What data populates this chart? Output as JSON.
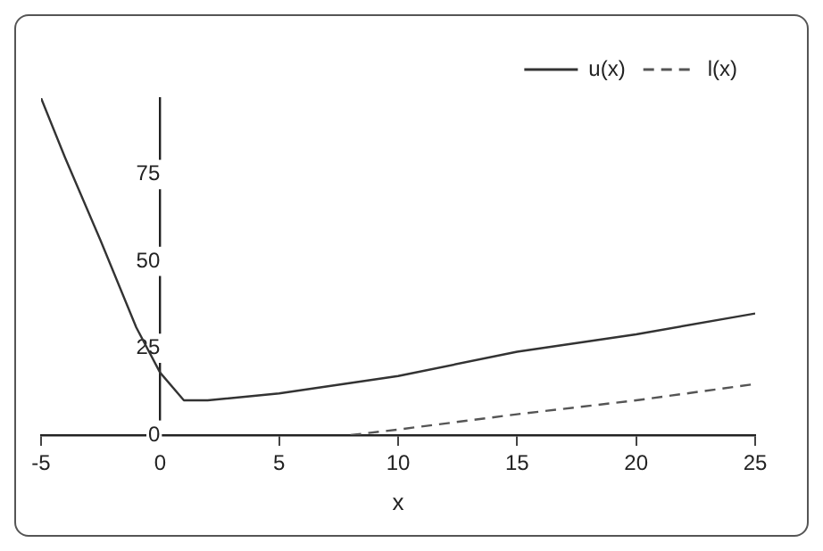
{
  "chart_data": {
    "type": "line",
    "xlabel": "x",
    "xlim": [
      -5,
      25
    ],
    "xticks": [
      -5,
      0,
      5,
      10,
      15,
      20,
      25
    ],
    "ylim": [
      0,
      97
    ],
    "yticks": [
      0,
      25,
      50,
      75
    ],
    "grid": false,
    "legend": "top right",
    "marker": "none",
    "series": [
      {
        "name": "u(x)",
        "color": "#333333",
        "line_style": "solid",
        "x": [
          -5,
          -4,
          -2.5,
          -1,
          0,
          1,
          2,
          5,
          10,
          15,
          20,
          25
        ],
        "values": [
          97,
          80,
          56,
          31,
          18,
          10,
          10,
          12,
          17,
          24,
          29,
          35
        ]
      },
      {
        "name": "l(x)",
        "color": "#555555",
        "line_style": "dashed",
        "x": [
          8,
          10,
          15,
          20,
          25
        ],
        "values": [
          0,
          1.6,
          6,
          10,
          14.7
        ]
      }
    ]
  }
}
